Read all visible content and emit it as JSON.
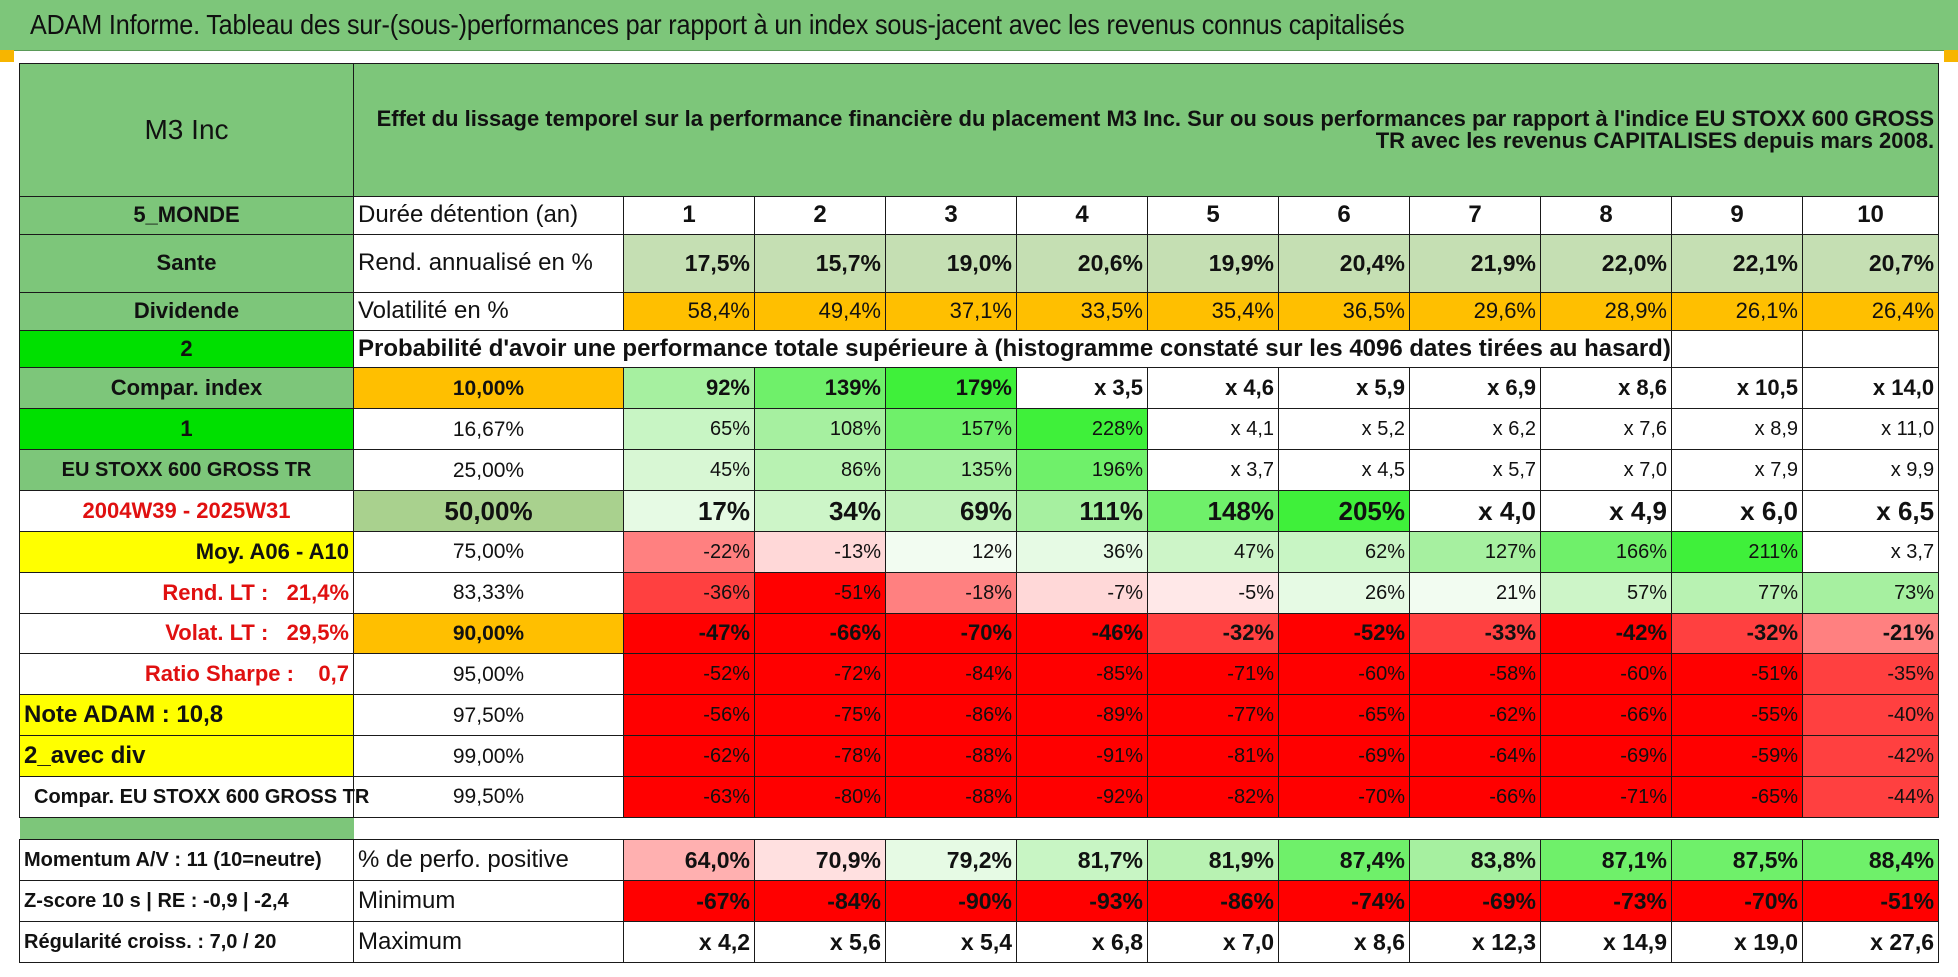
{
  "title": "ADAM Informe. Tableau des sur-(sous-)performances par rapport à un index sous-jacent avec les revenus connus capitalisés",
  "header": {
    "fund": "M3 Inc",
    "description": "Effet du lissage temporel sur la performance financière du placement M3 Inc. Sur ou sous performances par rapport à l'indice EU STOXX 600 GROSS TR avec les revenus CAPITALISES depuis mars 2008."
  },
  "side": {
    "region": "5_MONDE",
    "sector": "Sante",
    "type": "Dividende",
    "n1": "2",
    "compar_label": "Compar. index",
    "n2": "1",
    "index_name": "EU STOXX 600 GROSS TR",
    "period": "2004W39 - 2025W31",
    "moy": "Moy. A06 - A10",
    "rend_lt": "Rend. LT :   21,4%",
    "volat_lt": "Volat. LT :   29,5%",
    "sharpe": "Ratio Sharpe :    0,7",
    "note": "Note ADAM : 10,8",
    "avec_div": "2_avec div",
    "compar_full": "Compar. EU STOXX 600 GROSS TR",
    "momentum": "Momentum A/V : 11 (10=neutre)",
    "zscore": "Z-score 10 s | RE : -0,9 | -2,4",
    "regularite": "Régularité croiss. : 7,0 / 20"
  },
  "years": {
    "label": "Durée détention (an)",
    "values": [
      "1",
      "2",
      "3",
      "4",
      "5",
      "6",
      "7",
      "8",
      "9",
      "10"
    ]
  },
  "rend": {
    "label": "Rend. annualisé en %",
    "values": [
      "17,5%",
      "15,7%",
      "19,0%",
      "20,6%",
      "19,9%",
      "20,4%",
      "21,9%",
      "22,0%",
      "22,1%",
      "20,7%"
    ]
  },
  "vol": {
    "label": "Volatilité en %",
    "values": [
      "58,4%",
      "49,4%",
      "37,1%",
      "33,5%",
      "35,4%",
      "36,5%",
      "29,6%",
      "28,9%",
      "26,1%",
      "26,4%"
    ]
  },
  "prob_title": "Probabilité d'avoir une performance totale supérieure à (histogramme constaté sur les 4096 dates tirées au hasard)",
  "prob_rows": [
    {
      "p": "10,00%",
      "v": [
        "92%",
        "139%",
        "179%",
        "x 3,5",
        "x 4,6",
        "x 5,9",
        "x 6,9",
        "x 8,6",
        "x 10,5",
        "x 14,0"
      ]
    },
    {
      "p": "16,67%",
      "v": [
        "65%",
        "108%",
        "157%",
        "228%",
        "x 4,1",
        "x 5,2",
        "x 6,2",
        "x 7,6",
        "x 8,9",
        "x 11,0"
      ]
    },
    {
      "p": "25,00%",
      "v": [
        "45%",
        "86%",
        "135%",
        "196%",
        "x 3,7",
        "x 4,5",
        "x 5,7",
        "x 7,0",
        "x 7,9",
        "x 9,9"
      ]
    },
    {
      "p": "50,00%",
      "v": [
        "17%",
        "34%",
        "69%",
        "111%",
        "148%",
        "205%",
        "x 4,0",
        "x 4,9",
        "x 6,0",
        "x 6,5"
      ]
    },
    {
      "p": "75,00%",
      "v": [
        "-22%",
        "-13%",
        "12%",
        "36%",
        "47%",
        "62%",
        "127%",
        "166%",
        "211%",
        "x 3,7"
      ]
    },
    {
      "p": "83,33%",
      "v": [
        "-36%",
        "-51%",
        "-18%",
        "-7%",
        "-5%",
        "26%",
        "21%",
        "57%",
        "77%",
        "73%"
      ]
    },
    {
      "p": "90,00%",
      "v": [
        "-47%",
        "-66%",
        "-70%",
        "-46%",
        "-32%",
        "-52%",
        "-33%",
        "-42%",
        "-32%",
        "-21%"
      ]
    },
    {
      "p": "95,00%",
      "v": [
        "-52%",
        "-72%",
        "-84%",
        "-85%",
        "-71%",
        "-60%",
        "-58%",
        "-60%",
        "-51%",
        "-35%"
      ]
    },
    {
      "p": "97,50%",
      "v": [
        "-56%",
        "-75%",
        "-86%",
        "-89%",
        "-77%",
        "-65%",
        "-62%",
        "-66%",
        "-55%",
        "-40%"
      ]
    },
    {
      "p": "99,00%",
      "v": [
        "-62%",
        "-78%",
        "-88%",
        "-91%",
        "-81%",
        "-69%",
        "-64%",
        "-69%",
        "-59%",
        "-42%"
      ]
    },
    {
      "p": "99,50%",
      "v": [
        "-63%",
        "-80%",
        "-88%",
        "-92%",
        "-82%",
        "-70%",
        "-66%",
        "-71%",
        "-65%",
        "-44%"
      ]
    }
  ],
  "positive": {
    "label": "% de perfo. positive",
    "values": [
      "64,0%",
      "70,9%",
      "79,2%",
      "81,7%",
      "81,9%",
      "87,4%",
      "83,8%",
      "87,1%",
      "87,5%",
      "88,4%"
    ]
  },
  "minimum": {
    "label": "Minimum",
    "values": [
      "-67%",
      "-84%",
      "-90%",
      "-93%",
      "-86%",
      "-74%",
      "-69%",
      "-73%",
      "-70%",
      "-51%"
    ]
  },
  "maximum": {
    "label": "Maximum",
    "values": [
      "x 4,2",
      "x 5,6",
      "x 5,4",
      "x 6,8",
      "x 7,0",
      "x 8,6",
      "x 12,3",
      "x 14,9",
      "x 19,0",
      "x 27,6"
    ]
  },
  "colors": {
    "header_green": "#7dc67a",
    "light_green": "#c5dfb3",
    "bright_green": "#00e000",
    "yellow": "#ffff00",
    "orange": "#ffbf00",
    "red": "#ff0000",
    "label_red": "#e01010"
  }
}
